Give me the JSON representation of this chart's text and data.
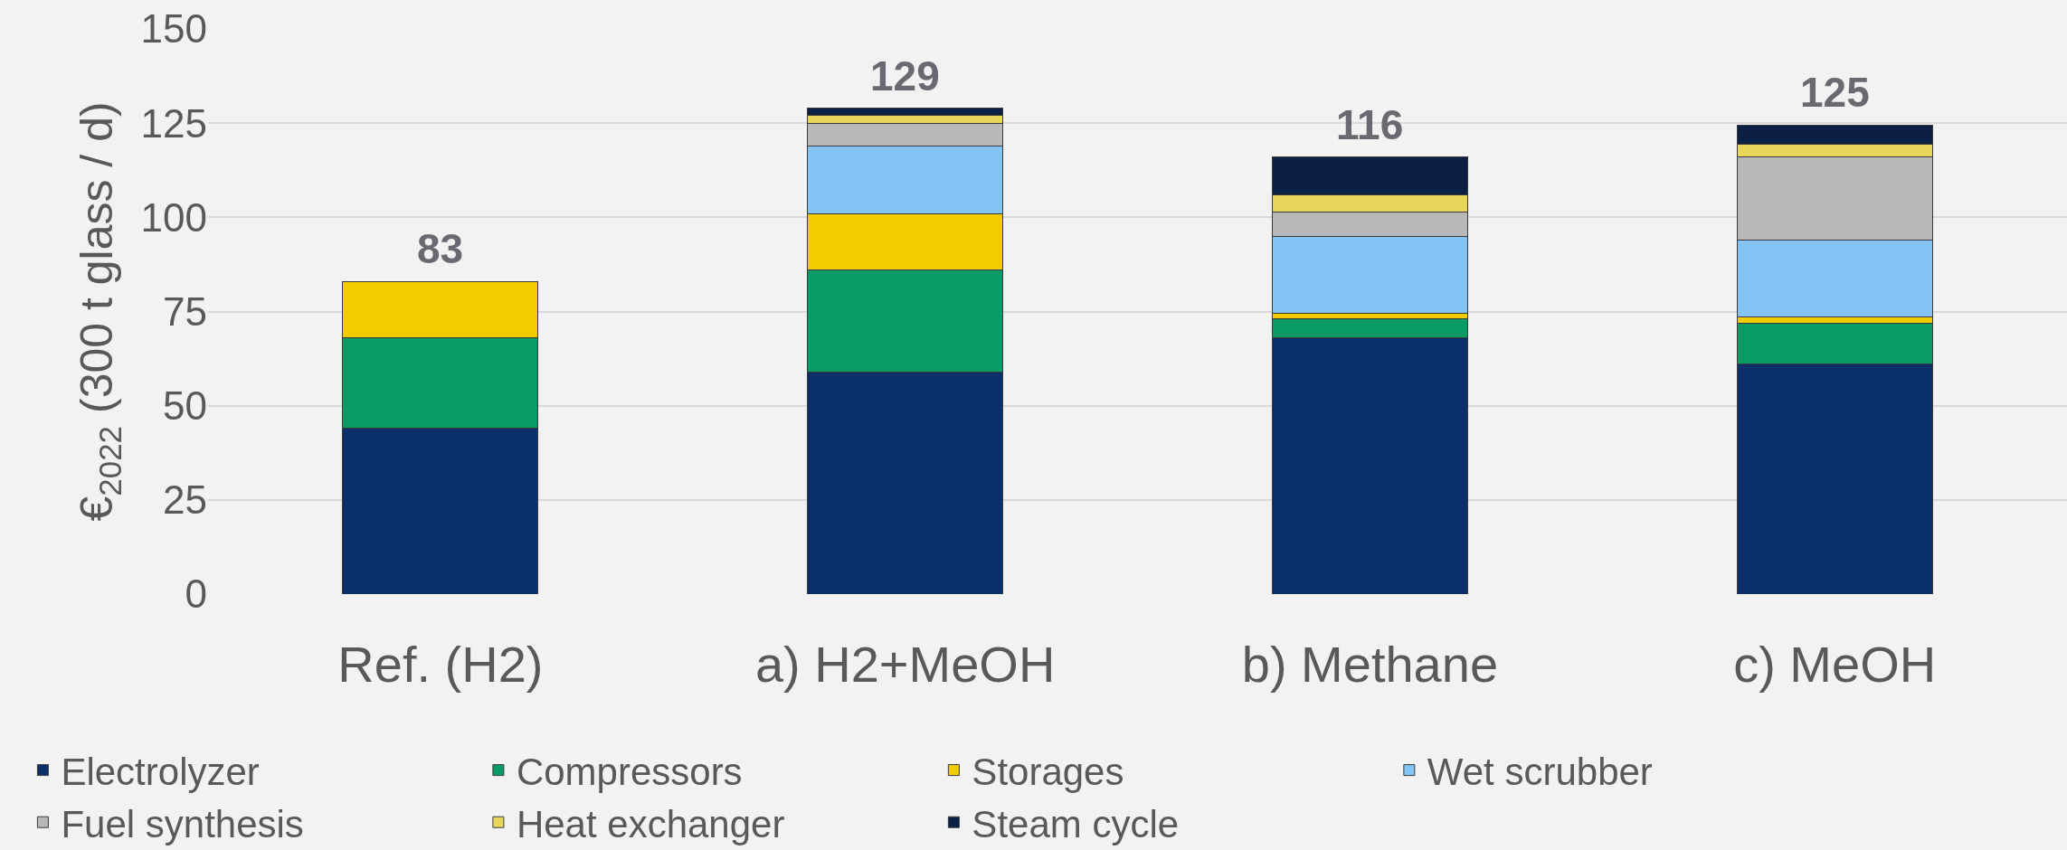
{
  "chart_data": {
    "type": "bar",
    "stacked": true,
    "ylabel": "€$_{2022}$ (300 t glass / d)",
    "categories": [
      "Ref. (H2)",
      "a) H2+MeOH",
      "b) Methane",
      "c) MeOH"
    ],
    "series": [
      {
        "name": "Electrolyzer",
        "color": "#0a2f6b",
        "values": [
          44,
          59,
          68,
          61
        ]
      },
      {
        "name": "Compressors",
        "color": "#0a9a66",
        "values": [
          24,
          27,
          5,
          11
        ]
      },
      {
        "name": "Storages",
        "color": "#f2cc00",
        "values": [
          15,
          15,
          1.5,
          1.5
        ]
      },
      {
        "name": "Wet scrubber",
        "color": "#84c4f5",
        "values": [
          null,
          18,
          20.5,
          20.5
        ]
      },
      {
        "name": "Fuel synthesis",
        "color": "#b8b8b8",
        "values": [
          null,
          6,
          6.5,
          22
        ]
      },
      {
        "name": "Heat exchanger",
        "color": "#e8d65a",
        "values": [
          null,
          2,
          4.5,
          3.5
        ]
      },
      {
        "name": "Steam cycle",
        "color": "#0b1f45",
        "values": [
          null,
          2,
          10,
          5
        ]
      }
    ],
    "totals": [
      "83",
      "129",
      "116",
      "125"
    ],
    "ylim": [
      0,
      150
    ],
    "yticks": [
      0,
      25,
      50,
      75,
      100,
      125,
      150
    ],
    "grid": "y",
    "legend": "bottom"
  }
}
